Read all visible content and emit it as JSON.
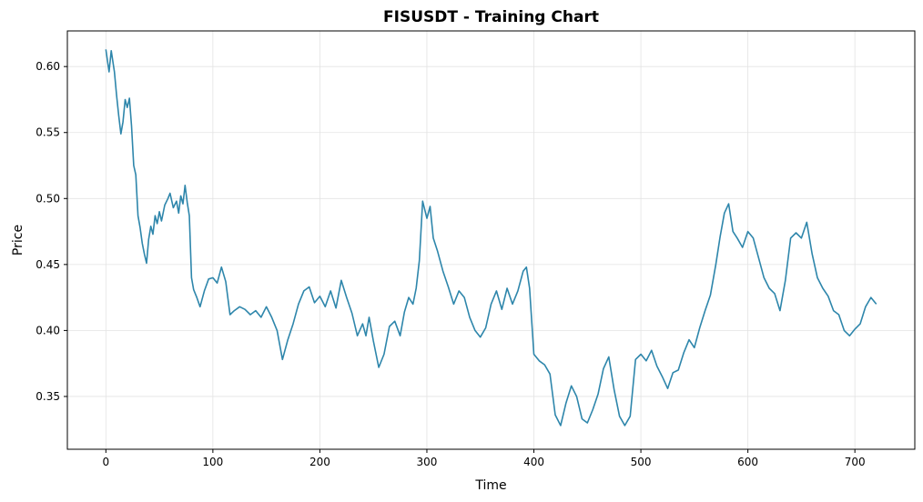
{
  "chart_data": {
    "type": "line",
    "title": "FISUSDT - Training Chart",
    "xlabel": "Time",
    "ylabel": "Price",
    "xlim": [
      -36,
      756
    ],
    "ylim": [
      0.31,
      0.627
    ],
    "grid": true,
    "x_ticks": [
      0,
      100,
      200,
      300,
      400,
      500,
      600,
      700
    ],
    "y_ticks": [
      0.35,
      0.4,
      0.45,
      0.5,
      0.55,
      0.6
    ],
    "x_tick_labels": [
      "0",
      "100",
      "200",
      "300",
      "400",
      "500",
      "600",
      "700"
    ],
    "y_tick_labels": [
      "0.35",
      "0.40",
      "0.45",
      "0.50",
      "0.55",
      "0.60"
    ],
    "line_color": "#2e86ab",
    "series": [
      {
        "x": [
          0,
          3,
          5,
          8,
          10,
          12,
          14,
          16,
          18,
          20,
          22,
          24,
          26,
          28,
          30,
          32,
          34,
          36,
          38,
          40,
          42,
          44,
          46,
          48,
          50,
          52,
          55,
          58,
          60,
          63,
          66,
          68,
          70,
          72,
          74,
          76,
          78,
          80,
          82,
          85,
          88,
          92,
          96,
          100,
          104,
          108,
          112,
          116,
          120,
          125,
          130,
          135,
          140,
          145,
          150,
          155,
          160,
          165,
          170,
          175,
          180,
          185,
          190,
          195,
          200,
          205,
          210,
          215,
          220,
          225,
          230,
          235,
          240,
          243,
          246,
          250,
          255,
          260,
          265,
          270,
          275,
          279,
          283,
          287,
          290,
          293,
          296,
          300,
          303,
          306,
          310,
          315,
          320,
          325,
          330,
          335,
          340,
          345,
          350,
          355,
          360,
          365,
          370,
          375,
          380,
          385,
          390,
          393,
          396,
          400,
          405,
          410,
          415,
          420,
          425,
          430,
          435,
          440,
          445,
          450,
          455,
          460,
          465,
          470,
          475,
          480,
          485,
          490,
          495,
          500,
          505,
          510,
          515,
          520,
          525,
          530,
          535,
          540,
          545,
          550,
          555,
          560,
          565,
          570,
          574,
          578,
          582,
          586,
          590,
          595,
          600,
          605,
          610,
          615,
          620,
          625,
          630,
          635,
          640,
          645,
          650,
          655,
          660,
          665,
          670,
          675,
          680,
          685,
          690,
          695,
          700,
          705,
          710,
          715,
          720
        ],
        "y": [
          0.613,
          0.596,
          0.612,
          0.596,
          0.578,
          0.563,
          0.549,
          0.558,
          0.575,
          0.569,
          0.576,
          0.555,
          0.525,
          0.518,
          0.487,
          0.478,
          0.466,
          0.458,
          0.451,
          0.469,
          0.479,
          0.473,
          0.487,
          0.481,
          0.49,
          0.483,
          0.495,
          0.5,
          0.504,
          0.493,
          0.498,
          0.489,
          0.502,
          0.496,
          0.51,
          0.497,
          0.487,
          0.44,
          0.431,
          0.425,
          0.418,
          0.43,
          0.439,
          0.44,
          0.436,
          0.448,
          0.437,
          0.412,
          0.415,
          0.418,
          0.416,
          0.412,
          0.415,
          0.41,
          0.418,
          0.41,
          0.4,
          0.378,
          0.393,
          0.405,
          0.42,
          0.43,
          0.433,
          0.421,
          0.426,
          0.418,
          0.43,
          0.417,
          0.438,
          0.425,
          0.413,
          0.396,
          0.405,
          0.396,
          0.41,
          0.392,
          0.372,
          0.382,
          0.403,
          0.407,
          0.396,
          0.414,
          0.425,
          0.42,
          0.432,
          0.453,
          0.498,
          0.485,
          0.494,
          0.47,
          0.46,
          0.445,
          0.433,
          0.42,
          0.43,
          0.425,
          0.41,
          0.4,
          0.395,
          0.402,
          0.42,
          0.43,
          0.416,
          0.432,
          0.42,
          0.43,
          0.445,
          0.448,
          0.432,
          0.382,
          0.377,
          0.374,
          0.367,
          0.336,
          0.328,
          0.345,
          0.358,
          0.35,
          0.333,
          0.33,
          0.34,
          0.352,
          0.371,
          0.38,
          0.355,
          0.335,
          0.328,
          0.335,
          0.378,
          0.382,
          0.377,
          0.385,
          0.373,
          0.365,
          0.356,
          0.368,
          0.37,
          0.383,
          0.393,
          0.387,
          0.402,
          0.415,
          0.427,
          0.45,
          0.471,
          0.489,
          0.496,
          0.475,
          0.47,
          0.463,
          0.475,
          0.47,
          0.455,
          0.44,
          0.432,
          0.428,
          0.415,
          0.438,
          0.47,
          0.474,
          0.47,
          0.482,
          0.458,
          0.44,
          0.432,
          0.426,
          0.415,
          0.412,
          0.4,
          0.396,
          0.401,
          0.405,
          0.418,
          0.425,
          0.42
        ]
      }
    ]
  }
}
